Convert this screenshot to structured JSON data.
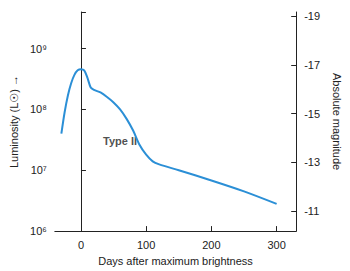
{
  "chart_data": {
    "type": "line",
    "x_label": "Days after maximum brightness",
    "y_label": "Luminosity (L☉) →",
    "y2_label": "Absolute magnitude",
    "x": [
      -30,
      -25,
      -20,
      -15,
      -10,
      -5,
      0,
      5,
      10,
      15,
      20,
      30,
      40,
      50,
      60,
      70,
      80,
      90,
      100,
      110,
      120,
      150,
      200,
      250,
      300
    ],
    "values": [
      40000000,
      90000000,
      170000000,
      270000000,
      370000000,
      440000000,
      460000000,
      440000000,
      330000000,
      230000000,
      210000000,
      190000000,
      160000000,
      130000000,
      100000000,
      70000000,
      45000000,
      26000000,
      18000000,
      14000000,
      12500000,
      10000000,
      6800000,
      4500000,
      2800000
    ],
    "color": "#2b8fd6",
    "log": "y",
    "xlim": [
      -40,
      330
    ],
    "xticks": [
      0,
      100,
      200,
      300
    ],
    "ylim": [
      1000000,
      4000000000
    ],
    "yticks": [
      {
        "value": 1000000,
        "label": "10⁶"
      },
      {
        "value": 10000000,
        "label": "10⁷"
      },
      {
        "value": 100000000,
        "label": "10⁸"
      },
      {
        "value": 1000000000,
        "label": "10⁹"
      }
    ],
    "y2lim": [
      -10.17,
      -19.18
    ],
    "y2ticks": [
      -11,
      -13,
      -15,
      -17,
      -19
    ],
    "annotations": [
      {
        "text": "Type II",
        "x": 60,
        "y": 30000000
      }
    ],
    "grid": false
  }
}
